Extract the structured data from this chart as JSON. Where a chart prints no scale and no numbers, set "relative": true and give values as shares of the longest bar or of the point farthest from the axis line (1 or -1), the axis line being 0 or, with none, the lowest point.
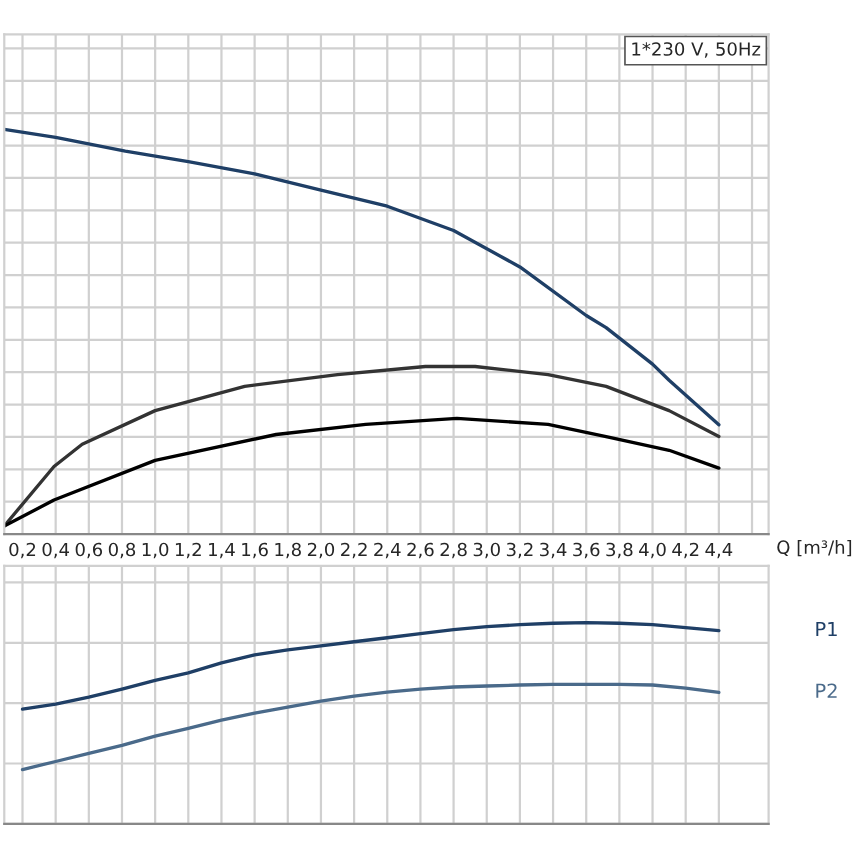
{
  "chart_data": [
    {
      "type": "line",
      "relative": true,
      "xlabel": "Q [m³/h]",
      "annotations": [
        "1*230 V, 50Hz"
      ],
      "grid": true,
      "tick_labels": "x",
      "xlim": [
        0.09,
        4.7
      ],
      "xticks": [
        {
          "value": 0.2,
          "label": "0,2"
        },
        {
          "value": 0.4,
          "label": "0,4"
        },
        {
          "value": 0.6,
          "label": "0,6"
        },
        {
          "value": 0.8,
          "label": "0,8"
        },
        {
          "value": 1.0,
          "label": "1,0"
        },
        {
          "value": 1.2,
          "label": "1,2"
        },
        {
          "value": 1.4,
          "label": "1,4"
        },
        {
          "value": 1.6,
          "label": "1,6"
        },
        {
          "value": 1.8,
          "label": "1,8"
        },
        {
          "value": 2.0,
          "label": "2,0"
        },
        {
          "value": 2.2,
          "label": "2,2"
        },
        {
          "value": 2.4,
          "label": "2,4"
        },
        {
          "value": 2.6,
          "label": "2,6"
        },
        {
          "value": 2.8,
          "label": "2,8"
        },
        {
          "value": 3.0,
          "label": "3,0"
        },
        {
          "value": 3.2,
          "label": "3,2"
        },
        {
          "value": 3.4,
          "label": "3,4"
        },
        {
          "value": 3.6,
          "label": "3,6"
        },
        {
          "value": 3.8,
          "label": "3,8"
        },
        {
          "value": 4.0,
          "label": "4,0"
        },
        {
          "value": 4.2,
          "label": "4,2"
        },
        {
          "value": 4.4,
          "label": "4,4"
        },
        {
          "value": 4.6,
          "label": null
        }
      ],
      "series": [
        {
          "color": "#1f3f66",
          "x": [
            0.09,
            0.4,
            0.82,
            1.2,
            1.6,
            2.0,
            2.4,
            2.8,
            3.2,
            3.6,
            3.72,
            4.0,
            4.1,
            4.4
          ],
          "values": [
            1.0,
            0.98,
            0.946,
            0.92,
            0.89,
            0.85,
            0.81,
            0.75,
            0.66,
            0.54,
            0.51,
            0.42,
            0.38,
            0.27
          ]
        },
        {
          "color": "#333333",
          "x": [
            0.09,
            0.39,
            0.56,
            1.0,
            1.54,
            2.1,
            2.63,
            2.93,
            3.37,
            3.72,
            4.1,
            4.4
          ],
          "values": [
            0.02,
            0.167,
            0.222,
            0.305,
            0.365,
            0.394,
            0.414,
            0.414,
            0.394,
            0.365,
            0.305,
            0.241
          ]
        },
        {
          "color": "#000000",
          "x": [
            0.09,
            0.39,
            1.0,
            1.73,
            2.27,
            2.82,
            3.37,
            3.72,
            4.1,
            4.4
          ],
          "values": [
            0.02,
            0.084,
            0.182,
            0.246,
            0.271,
            0.286,
            0.271,
            0.241,
            0.207,
            0.163
          ]
        }
      ]
    },
    {
      "type": "line",
      "relative": true,
      "grid": true,
      "tick_labels": false,
      "categories": [
        null,
        null,
        null,
        null,
        null,
        null,
        null,
        null,
        null,
        null,
        null,
        null,
        null,
        null,
        null,
        null,
        null,
        null,
        null,
        null,
        null,
        null
      ],
      "series": [
        {
          "name": "P1",
          "color": "#1f3f66",
          "values": [
            0.57,
            0.595,
            0.63,
            0.67,
            0.713,
            0.75,
            0.8,
            0.84,
            0.865,
            0.885,
            0.905,
            0.925,
            0.945,
            0.965,
            0.98,
            0.99,
            0.997,
            1.0,
            0.997,
            0.99,
            0.975,
            0.96
          ]
        },
        {
          "name": "P2",
          "color": "#4a6a8a",
          "values": [
            0.27,
            0.31,
            0.35,
            0.39,
            0.436,
            0.475,
            0.515,
            0.55,
            0.58,
            0.61,
            0.635,
            0.655,
            0.67,
            0.68,
            0.685,
            0.69,
            0.693,
            0.693,
            0.693,
            0.69,
            0.675,
            0.653
          ]
        }
      ]
    }
  ]
}
